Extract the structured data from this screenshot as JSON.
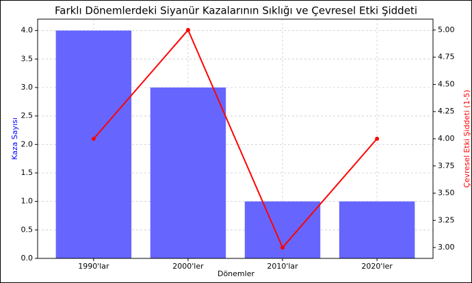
{
  "chart_data": {
    "type": "bar",
    "title": "Farklı Dönemlerdeki Siyanür Kazalarının Sıklığı ve Çevresel Etki Şiddeti",
    "xlabel": "Dönemler",
    "ylabel": "Kaza Sayısı",
    "y2label": "Çevresel Etki Şiddeti (1-5)",
    "categories": [
      "1990'lar",
      "2000'ler",
      "2010'lar",
      "2020'ler"
    ],
    "series": [
      {
        "type": "bar",
        "color": "#6666ff",
        "values": [
          4,
          3,
          1,
          1
        ]
      },
      {
        "type": "line",
        "axis": "y2",
        "color": "#ff0000",
        "values": [
          4,
          5,
          3,
          4
        ]
      }
    ],
    "ylim": [
      0,
      4.2
    ],
    "yticks": [
      {
        "value": 0,
        "label": "0.0"
      },
      {
        "value": 0.5,
        "label": "0.5"
      },
      {
        "value": 1,
        "label": "1.0"
      },
      {
        "value": 1.5,
        "label": "1.5"
      },
      {
        "value": 2,
        "label": "2.0"
      },
      {
        "value": 2.5,
        "label": "2.5"
      },
      {
        "value": 3,
        "label": "3.0"
      },
      {
        "value": 3.5,
        "label": "3.5"
      },
      {
        "value": 4,
        "label": "4.0"
      }
    ],
    "y2lim": [
      2.9,
      5.1
    ],
    "y2ticks": [
      {
        "value": 3,
        "label": "3.00"
      },
      {
        "value": 3.25,
        "label": "3.25"
      },
      {
        "value": 3.5,
        "label": "3.50"
      },
      {
        "value": 3.75,
        "label": "3.75"
      },
      {
        "value": 4,
        "label": "4.00"
      },
      {
        "value": 4.25,
        "label": "4.25"
      },
      {
        "value": 4.5,
        "label": "4.50"
      },
      {
        "value": 4.75,
        "label": "4.75"
      },
      {
        "value": 5,
        "label": "5.00"
      }
    ],
    "grid": true
  }
}
